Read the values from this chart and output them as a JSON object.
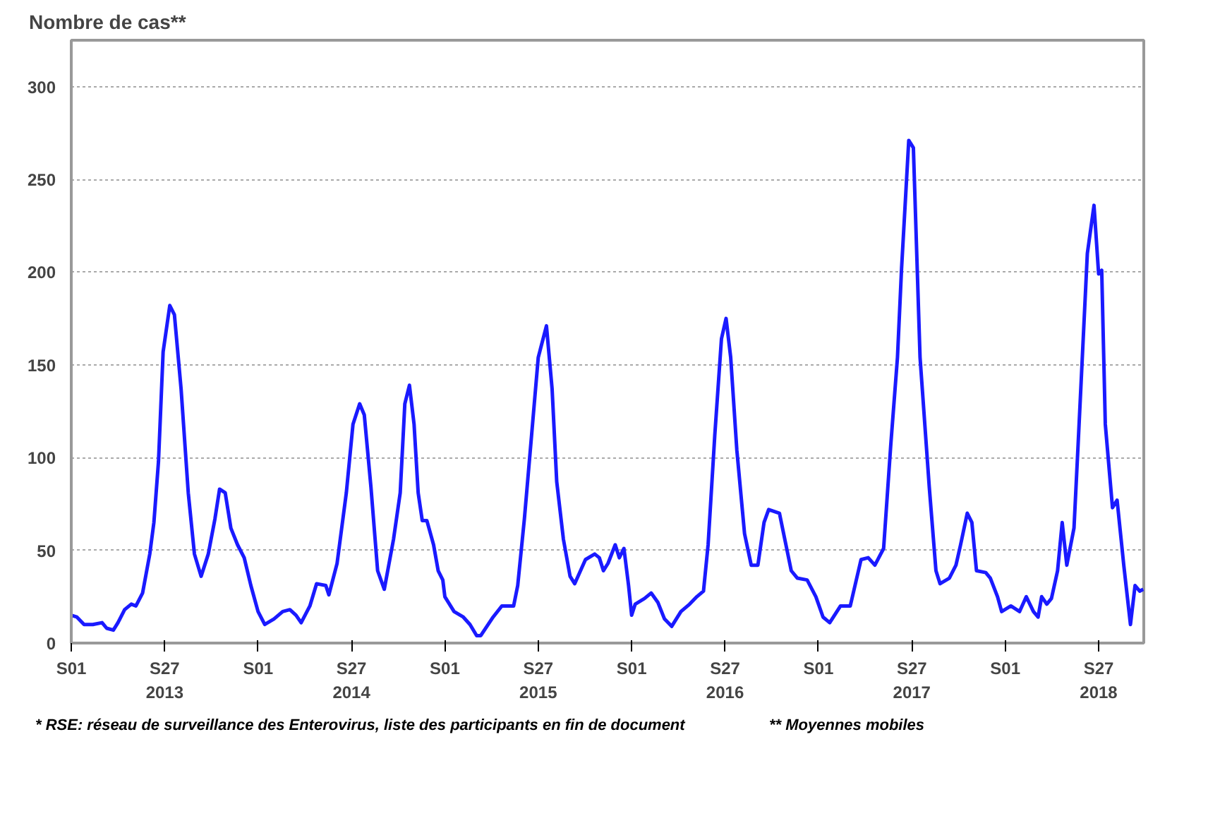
{
  "chart_data": {
    "type": "line",
    "ylabel": "Nombre de cas**",
    "annotations": [
      "* RSE: réseau de surveillance des Enterovirus, liste des participants en fin de document",
      "** Moyennes mobiles"
    ],
    "series": [
      {
        "color": "#1a1aff",
        "x": [
          "2012-12-31",
          "2013-01-11",
          "2013-01-25",
          "2013-02-11",
          "2013-03-01",
          "2013-03-10",
          "2013-03-23",
          "2013-04-01",
          "2013-04-14",
          "2013-04-27",
          "2013-05-06",
          "2013-05-19",
          "2013-06-02",
          "2013-06-10",
          "2013-06-19",
          "2013-06-28",
          "2013-07-11",
          "2013-07-20",
          "2013-08-02",
          "2013-08-16",
          "2013-08-28",
          "2013-09-10",
          "2013-09-24",
          "2013-10-07",
          "2013-10-16",
          "2013-10-27",
          "2013-11-07",
          "2013-11-20",
          "2013-12-03",
          "2013-12-16",
          "2013-12-30",
          "2014-01-12",
          "2014-01-30",
          "2014-02-16",
          "2014-03-02",
          "2014-03-14",
          "2014-03-24",
          "2014-04-10",
          "2014-04-23",
          "2014-05-11",
          "2014-05-17",
          "2014-06-02",
          "2014-06-20",
          "2014-07-03",
          "2014-07-16",
          "2014-07-25",
          "2014-08-07",
          "2014-08-20",
          "2014-09-02",
          "2014-09-20",
          "2014-10-03",
          "2014-10-12",
          "2014-10-21",
          "2014-10-30",
          "2014-11-07",
          "2014-11-15",
          "2014-11-24",
          "2014-12-07",
          "2014-12-16",
          "2014-12-25",
          "2014-12-29",
          "2015-01-16",
          "2015-02-03",
          "2015-02-16",
          "2015-03-01",
          "2015-03-09",
          "2015-04-02",
          "2015-04-19",
          "2015-05-03",
          "2015-05-12",
          "2015-05-20",
          "2015-06-02",
          "2015-06-16",
          "2015-06-29",
          "2015-07-15",
          "2015-07-26",
          "2015-08-04",
          "2015-08-17",
          "2015-08-30",
          "2015-09-08",
          "2015-09-29",
          "2015-10-17",
          "2015-10-26",
          "2015-11-03",
          "2015-11-12",
          "2015-11-26",
          "2015-12-04",
          "2015-12-13",
          "2015-12-22",
          "2015-12-28",
          "2016-01-04",
          "2016-01-22",
          "2016-02-04",
          "2016-02-17",
          "2016-03-01",
          "2016-03-15",
          "2016-04-02",
          "2016-04-19",
          "2016-05-03",
          "2016-05-16",
          "2016-05-25",
          "2016-06-07",
          "2016-06-20",
          "2016-06-29",
          "2016-07-08",
          "2016-07-20",
          "2016-08-04",
          "2016-08-17",
          "2016-08-30",
          "2016-09-11",
          "2016-09-20",
          "2016-10-11",
          "2016-11-03",
          "2016-11-15",
          "2016-12-04",
          "2016-12-21",
          "2017-01-04",
          "2017-01-17",
          "2017-02-07",
          "2017-02-26",
          "2017-03-19",
          "2017-04-02",
          "2017-04-15",
          "2017-05-02",
          "2017-05-16",
          "2017-05-29",
          "2017-06-06",
          "2017-06-20",
          "2017-06-29",
          "2017-07-12",
          "2017-07-30",
          "2017-08-12",
          "2017-08-20",
          "2017-09-07",
          "2017-09-20",
          "2017-09-29",
          "2017-10-12",
          "2017-10-21",
          "2017-10-30",
          "2017-11-17",
          "2017-11-26",
          "2017-12-10",
          "2017-12-18",
          "2018-01-05",
          "2018-01-22",
          "2018-02-04",
          "2018-02-18",
          "2018-02-27",
          "2018-03-06",
          "2018-03-16",
          "2018-03-25",
          "2018-04-06",
          "2018-04-15",
          "2018-04-24",
          "2018-05-08",
          "2018-05-16",
          "2018-06-03",
          "2018-06-16",
          "2018-06-25",
          "2018-07-01",
          "2018-07-08",
          "2018-07-22",
          "2018-07-31",
          "2018-08-13",
          "2018-08-26",
          "2018-09-04",
          "2018-09-13",
          "2018-09-20"
        ],
        "values": [
          15,
          14,
          10,
          10,
          11,
          8,
          7,
          11,
          18,
          21,
          20,
          27,
          48,
          65,
          98,
          157,
          182,
          177,
          137,
          81,
          48,
          36,
          48,
          67,
          83,
          81,
          62,
          53,
          46,
          31,
          17,
          10,
          13,
          17,
          18,
          15,
          11,
          20,
          32,
          31,
          26,
          43,
          81,
          118,
          129,
          123,
          84,
          39,
          29,
          56,
          81,
          129,
          139,
          118,
          81,
          66,
          66,
          53,
          39,
          34,
          25,
          17,
          14,
          10,
          4,
          4,
          14,
          20,
          20,
          20,
          31,
          67,
          112,
          154,
          171,
          137,
          87,
          56,
          36,
          32,
          45,
          48,
          46,
          39,
          43,
          53,
          46,
          51,
          31,
          15,
          21,
          24,
          27,
          22,
          13,
          9,
          17,
          21,
          25,
          28,
          53,
          112,
          164,
          175,
          154,
          104,
          59,
          42,
          42,
          65,
          72,
          70,
          39,
          35,
          34,
          25,
          14,
          11,
          20,
          20,
          45,
          46,
          42,
          51,
          107,
          154,
          202,
          271,
          267,
          154,
          84,
          39,
          32,
          35,
          42,
          53,
          70,
          65,
          39,
          38,
          35,
          25,
          17,
          20,
          17,
          25,
          17,
          14,
          25,
          21,
          24,
          39,
          65,
          42,
          62,
          107,
          210,
          236,
          199,
          201,
          118,
          73,
          77,
          42,
          10,
          31,
          28,
          29
        ]
      }
    ],
    "xlim": [
      "2012-12-31",
      "2018-09-21"
    ],
    "xticks": [
      {
        "value": "2012-12-31",
        "label": "S01"
      },
      {
        "value": "2013-07-01",
        "label": "S27\n2013"
      },
      {
        "value": "2013-12-30",
        "label": "S01"
      },
      {
        "value": "2014-06-30",
        "label": "S27\n2014"
      },
      {
        "value": "2014-12-29",
        "label": "S01"
      },
      {
        "value": "2015-06-29",
        "label": "S27\n2015"
      },
      {
        "value": "2015-12-28",
        "label": "S01"
      },
      {
        "value": "2016-06-27",
        "label": "S27\n2016"
      },
      {
        "value": "2016-12-26",
        "label": "S01"
      },
      {
        "value": "2017-06-26",
        "label": "S27\n2017"
      },
      {
        "value": "2017-12-25",
        "label": "S01"
      },
      {
        "value": "2018-06-25",
        "label": "S27\n2018"
      }
    ],
    "ylim": [
      0,
      325
    ],
    "yticks": [
      0,
      50,
      100,
      150,
      200,
      250,
      300
    ],
    "grid": "y",
    "line_style": "solid"
  }
}
